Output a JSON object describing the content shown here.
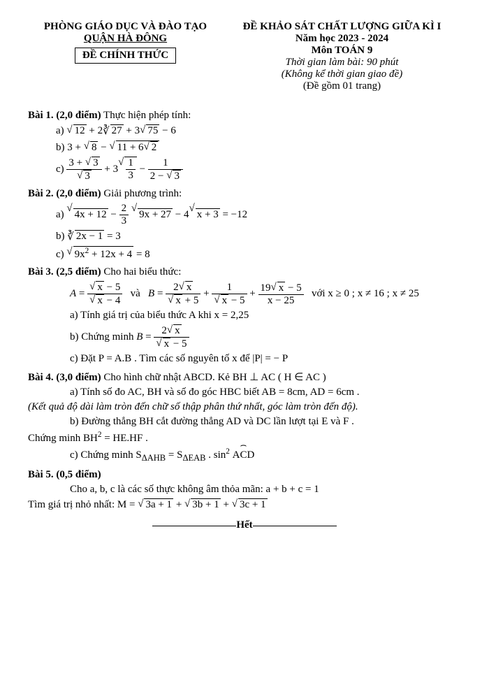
{
  "header": {
    "left_line1": "PHÒNG GIÁO DỤC VÀ ĐÀO TẠO",
    "left_line2": "QUẬN HÀ ĐÔNG",
    "left_box": "ĐỀ CHÍNH THỨC",
    "right_line1": "ĐỀ KHẢO SÁT CHẤT LƯỢNG GIỮA KÌ I",
    "right_line2": "Năm học 2023 - 2024",
    "right_line3": "Môn TOÁN 9",
    "right_line4": "Thời gian làm bài: 90 phút",
    "right_line5": "(Không kể thời gian giao đề)",
    "right_line6": "(Đề gồm 01 trang)"
  },
  "bai1": {
    "title": "Bài 1. (2,0 điểm)",
    "text": " Thực hiện phép tính:"
  },
  "bai2": {
    "title": "Bài 2. (2,0 điểm)",
    "text": " Giải phương trình:"
  },
  "bai3": {
    "title": "Bài 3. (2,5 điểm)",
    "text": " Cho hai biểu thức:",
    "cond": "với  x ≥ 0 ; x ≠ 16 ; x ≠ 25",
    "a": "a) Tính giá trị của biểu thức A khi  x = 2,25",
    "b": "b) Chứng minh  ",
    "c": "c) Đặt  P = A.B . Tìm các số nguyên tố x để |P| = − P"
  },
  "bai4": {
    "title": "Bài 4. (3,0 điểm)",
    "text": "  Cho hình chữ nhật ABCD. Kẻ  BH ⊥ AC ( H ∈ AC )",
    "a": "a) Tính số đo AC, BH và số đo góc HBC biết  AB = 8cm, AD = 6cm .",
    "note": "(Kết quả độ dài làm tròn đến chữ số thập phân thứ nhất, góc làm tròn đến độ).",
    "b": "b) Đường thẳng BH cắt đường thẳng AD và DC lần lượt tại  E  và  F .",
    "b2": "Chứng minh  BH",
    "b2_after": " = HE.HF .",
    "c_pre": "c) Chứng minh  S",
    "c_mid": " = S",
    "c_suf": " . sin",
    "c_end": " ACD"
  },
  "bai5": {
    "title": "Bài 5. (0,5 điểm)",
    "line1": "Cho a, b, c là các số thực không âm thỏa mãn:  a + b + c = 1",
    "line2": "Tìm giá trị nhỏ nhất:  M = "
  },
  "het": "Hết"
}
